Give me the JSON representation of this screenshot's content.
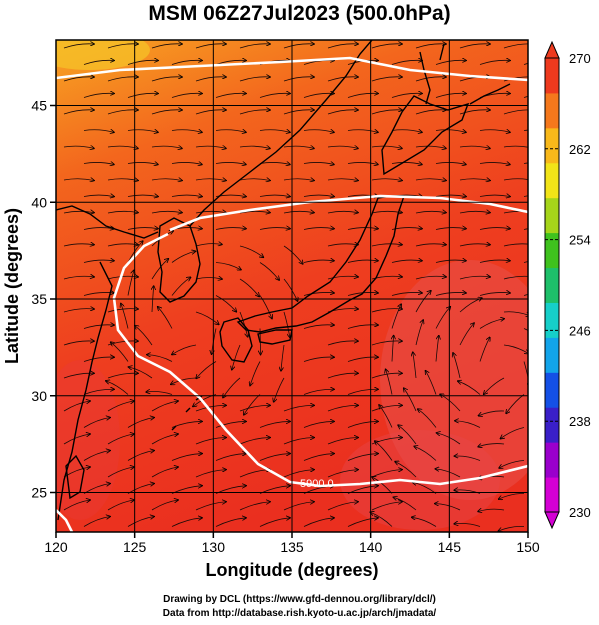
{
  "title": "MSM 06Z27Jul2023 (500.0hPa)",
  "x_axis": {
    "label": "Longitude (degrees)",
    "ticks": [
      "120",
      "125",
      "130",
      "135",
      "140",
      "145",
      "150"
    ]
  },
  "y_axis": {
    "label": "Latitude  (degrees)",
    "ticks": [
      "25",
      "30",
      "35",
      "40",
      "45"
    ]
  },
  "colorbar": {
    "ticks": [
      "270",
      "262",
      "254",
      "246",
      "238",
      "230"
    ],
    "min": 230,
    "max": 270,
    "colors": [
      "#d400d4",
      "#9a00cc",
      "#3a1fc8",
      "#1450e6",
      "#12a4ea",
      "#16cfc9",
      "#1ec06a",
      "#3fc21e",
      "#a6d51a",
      "#f2e418",
      "#f8b81a",
      "#f5781c",
      "#ee3a1e"
    ]
  },
  "contour_label": "5900.0",
  "credits": {
    "line1": "Drawing by DCL (https://www.gfd-dennou.org/library/dcl/)",
    "line2": "Data from http://database.rish.kyoto-u.ac.jp/arch/jmadata/"
  }
}
